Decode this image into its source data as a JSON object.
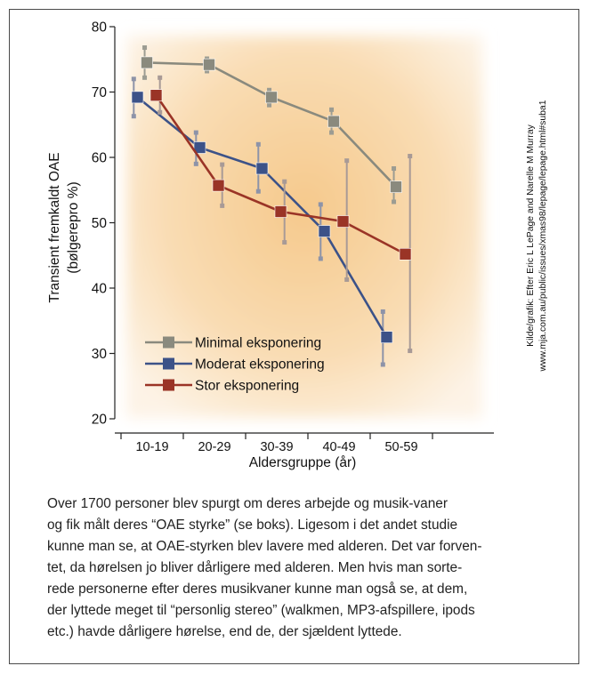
{
  "chart_data": {
    "type": "line",
    "title": "",
    "xlabel": "Aldersgruppe  (år)",
    "ylabel_line1": "Transient fremkaldt OAE",
    "ylabel_line2": "(bølgerepro %)",
    "categories": [
      "10-19",
      "20-29",
      "30-39",
      "40-49",
      "50-59"
    ],
    "ylim": [
      20,
      80
    ],
    "yticks": [
      20,
      30,
      40,
      50,
      60,
      70,
      80
    ],
    "grid": false,
    "legend_position": "bottom-left",
    "series": [
      {
        "name": "Minimal eksponering",
        "color": "#8a8a7e",
        "offset": 0,
        "values": [
          74.5,
          74.2,
          69.2,
          65.5,
          55.5
        ],
        "errors": [
          [
            72.2,
            76.8
          ],
          [
            73.2,
            75.1
          ],
          [
            68.0,
            70.3
          ],
          [
            63.8,
            67.3
          ],
          [
            53.2,
            58.3
          ]
        ]
      },
      {
        "name": "Moderat eksponering",
        "color": "#3c5288",
        "offset": -0.15,
        "values": [
          69.2,
          61.5,
          58.3,
          48.7,
          32.5
        ],
        "errors": [
          [
            66.3,
            72.0
          ],
          [
            59.0,
            63.8
          ],
          [
            54.8,
            62.0
          ],
          [
            44.5,
            52.8
          ],
          [
            28.3,
            36.4
          ]
        ]
      },
      {
        "name": "Stor eksponering",
        "color": "#9a3426",
        "offset": 0.15,
        "values": [
          69.5,
          55.7,
          51.7,
          50.2,
          45.2
        ],
        "errors": [
          [
            66.9,
            72.2
          ],
          [
            52.6,
            58.9
          ],
          [
            47.0,
            56.3
          ],
          [
            41.3,
            59.5
          ],
          [
            30.4,
            60.2
          ]
        ]
      }
    ]
  },
  "source_credit_line1": "Kilde/grafik: Efter Eric L LePage and Narelle M Murray",
  "source_credit_line2": "www.mja.com.au/public/issues/xmas98/lepage/lepage.html#suba1",
  "caption_lines": [
    "Over 1700 personer blev spurgt om deres arbejde og musik-vaner",
    "og fik målt deres “OAE styrke” (se boks). Ligesom i det andet studie",
    "kunne man se, at OAE-styrken blev lavere med alderen. Det var forven-",
    "tet, da hørelsen jo bliver dårligere med alderen. Men hvis man sorte-",
    "rede personerne efter deres musikvaner kunne man også se, at dem,",
    "der lyttede meget til “personlig stereo” (walkmen, MP3-afspillere, ipods",
    "etc.) havde dårligere hørelse, end de, der sjældent lyttede."
  ]
}
